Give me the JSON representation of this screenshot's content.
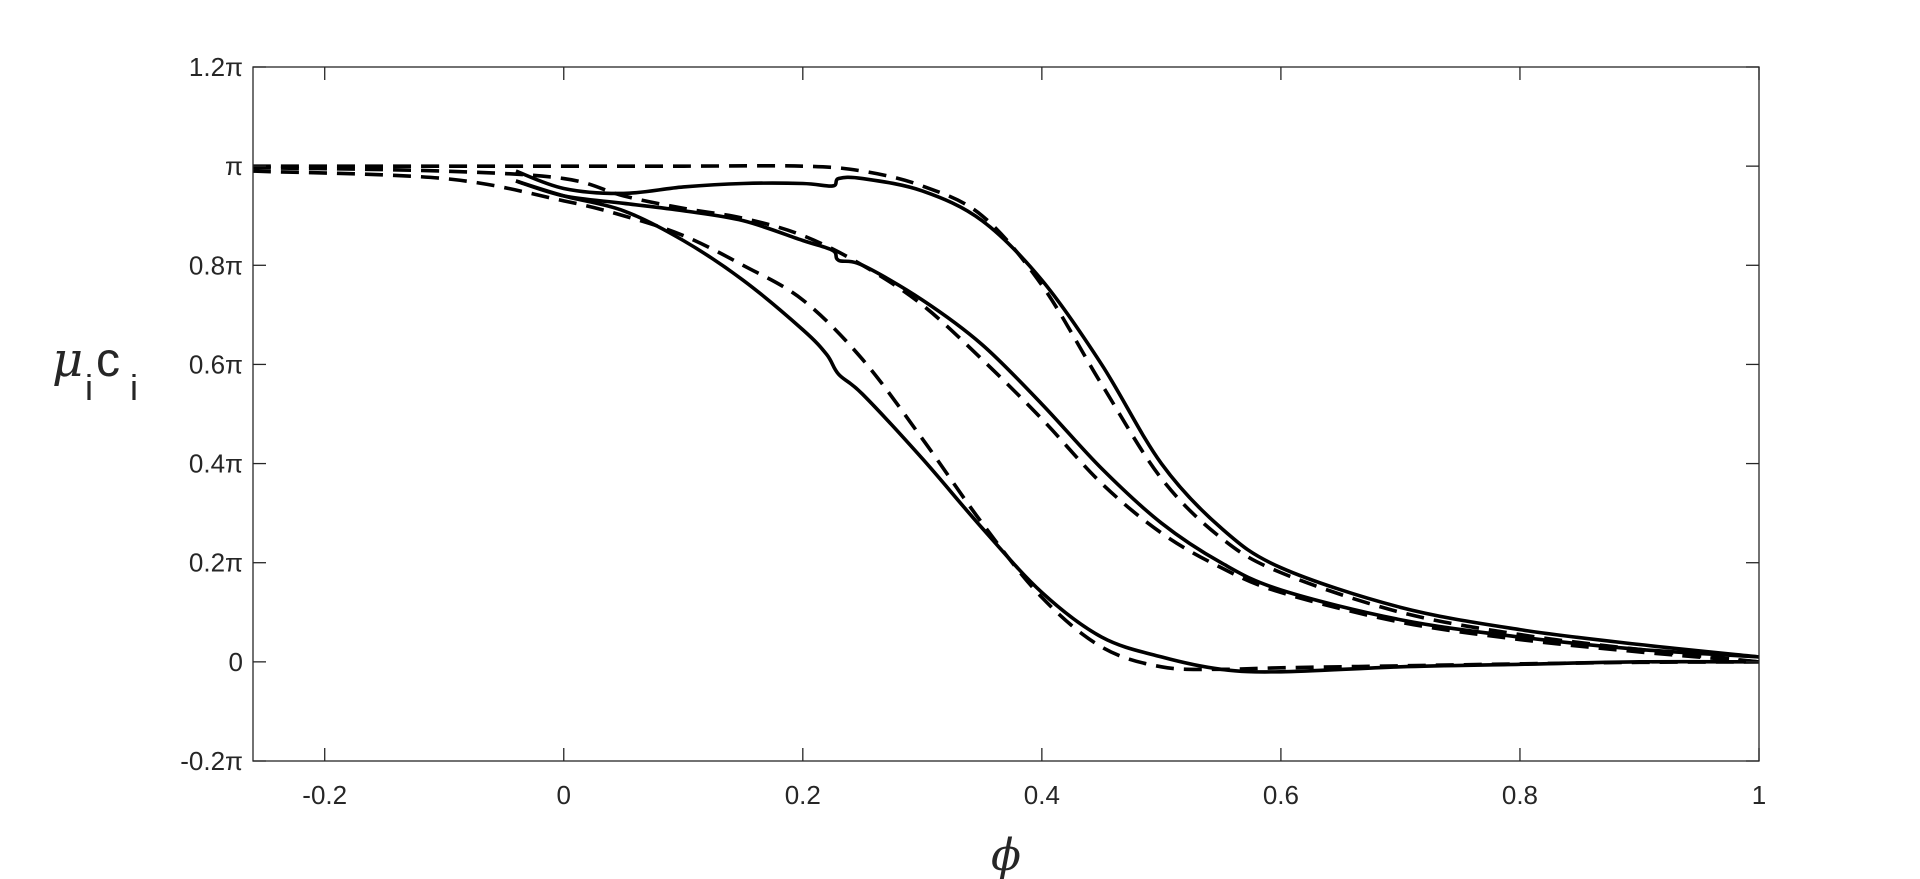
{
  "chart_data": {
    "type": "line",
    "title": "",
    "xlabel": "ϕ",
    "ylabel": {
      "mu": "μ",
      "mu_sub": "i",
      "c": "c",
      "c_sub": "i"
    },
    "xlim": [
      -0.26,
      1.0
    ],
    "ylim": [
      -0.2,
      1.2
    ],
    "y_units": "multiples of pi",
    "grid": false,
    "legend": "none",
    "x_ticks": [
      {
        "value": -0.2,
        "label": "-0.2"
      },
      {
        "value": 0,
        "label": "0"
      },
      {
        "value": 0.2,
        "label": "0.2"
      },
      {
        "value": 0.4,
        "label": "0.4"
      },
      {
        "value": 0.6,
        "label": "0.6"
      },
      {
        "value": 0.8,
        "label": "0.8"
      },
      {
        "value": 1.0,
        "label": "1"
      }
    ],
    "y_ticks": [
      {
        "value": -0.2,
        "label": "-0.2π"
      },
      {
        "value": 0,
        "label": "0"
      },
      {
        "value": 0.2,
        "label": "0.2π"
      },
      {
        "value": 0.4,
        "label": "0.4π"
      },
      {
        "value": 0.6,
        "label": "0.6π"
      },
      {
        "value": 0.8,
        "label": "0.8π"
      },
      {
        "value": 1.0,
        "label": "π"
      },
      {
        "value": 1.2,
        "label": "1.2π"
      }
    ],
    "series": [
      {
        "style": "solid",
        "color": "#000000",
        "x": [
          -0.04,
          0.0,
          0.05,
          0.1,
          0.15,
          0.2,
          0.225,
          0.23,
          0.25,
          0.3,
          0.35,
          0.4,
          0.45,
          0.5,
          0.55,
          0.6,
          0.7,
          0.8,
          0.9,
          1.0
        ],
        "y": [
          0.99,
          0.955,
          0.945,
          0.958,
          0.965,
          0.965,
          0.96,
          0.975,
          0.975,
          0.95,
          0.89,
          0.77,
          0.6,
          0.4,
          0.27,
          0.19,
          0.11,
          0.065,
          0.035,
          0.01
        ]
      },
      {
        "style": "dashed",
        "color": "#000000",
        "x": [
          -0.26,
          -0.1,
          0.0,
          0.1,
          0.2,
          0.25,
          0.3,
          0.35,
          0.4,
          0.45,
          0.5,
          0.55,
          0.6,
          0.7,
          0.8,
          0.9,
          1.0
        ],
        "y": [
          1.0,
          1.0,
          1.0,
          1.0,
          1.0,
          0.99,
          0.96,
          0.9,
          0.76,
          0.56,
          0.37,
          0.25,
          0.18,
          0.1,
          0.055,
          0.025,
          0.0
        ]
      },
      {
        "style": "solid",
        "color": "#000000",
        "x": [
          -0.04,
          0.0,
          0.05,
          0.1,
          0.15,
          0.2,
          0.225,
          0.23,
          0.25,
          0.3,
          0.35,
          0.4,
          0.45,
          0.5,
          0.55,
          0.6,
          0.7,
          0.8,
          0.9,
          1.0
        ],
        "y": [
          0.97,
          0.94,
          0.925,
          0.91,
          0.89,
          0.85,
          0.83,
          0.81,
          0.8,
          0.73,
          0.64,
          0.52,
          0.39,
          0.28,
          0.2,
          0.145,
          0.085,
          0.05,
          0.025,
          0.01
        ]
      },
      {
        "style": "dashed",
        "color": "#000000",
        "x": [
          -0.26,
          -0.1,
          0.0,
          0.05,
          0.1,
          0.15,
          0.2,
          0.25,
          0.3,
          0.35,
          0.4,
          0.45,
          0.5,
          0.55,
          0.6,
          0.7,
          0.8,
          0.9,
          1.0
        ],
        "y": [
          0.997,
          0.99,
          0.975,
          0.94,
          0.915,
          0.895,
          0.86,
          0.8,
          0.72,
          0.61,
          0.49,
          0.36,
          0.26,
          0.19,
          0.14,
          0.08,
          0.045,
          0.02,
          0.0
        ]
      },
      {
        "style": "solid",
        "color": "#000000",
        "x": [
          -0.04,
          0.0,
          0.05,
          0.1,
          0.15,
          0.2,
          0.22,
          0.23,
          0.25,
          0.3,
          0.35,
          0.4,
          0.45,
          0.5,
          0.55,
          0.6,
          0.7,
          0.8,
          0.9,
          1.0
        ],
        "y": [
          0.97,
          0.94,
          0.91,
          0.85,
          0.77,
          0.67,
          0.62,
          0.58,
          0.54,
          0.41,
          0.27,
          0.14,
          0.05,
          0.01,
          -0.015,
          -0.02,
          -0.01,
          -0.005,
          0.0,
          0.0
        ]
      },
      {
        "style": "dashed",
        "color": "#000000",
        "x": [
          -0.26,
          -0.1,
          0.0,
          0.05,
          0.1,
          0.15,
          0.2,
          0.25,
          0.3,
          0.35,
          0.4,
          0.45,
          0.5,
          0.55,
          0.6,
          0.7,
          0.8,
          0.9,
          1.0
        ],
        "y": [
          0.99,
          0.975,
          0.93,
          0.9,
          0.86,
          0.8,
          0.73,
          0.61,
          0.45,
          0.28,
          0.13,
          0.03,
          -0.01,
          -0.015,
          -0.012,
          -0.008,
          -0.004,
          -0.001,
          0.0
        ]
      }
    ]
  }
}
